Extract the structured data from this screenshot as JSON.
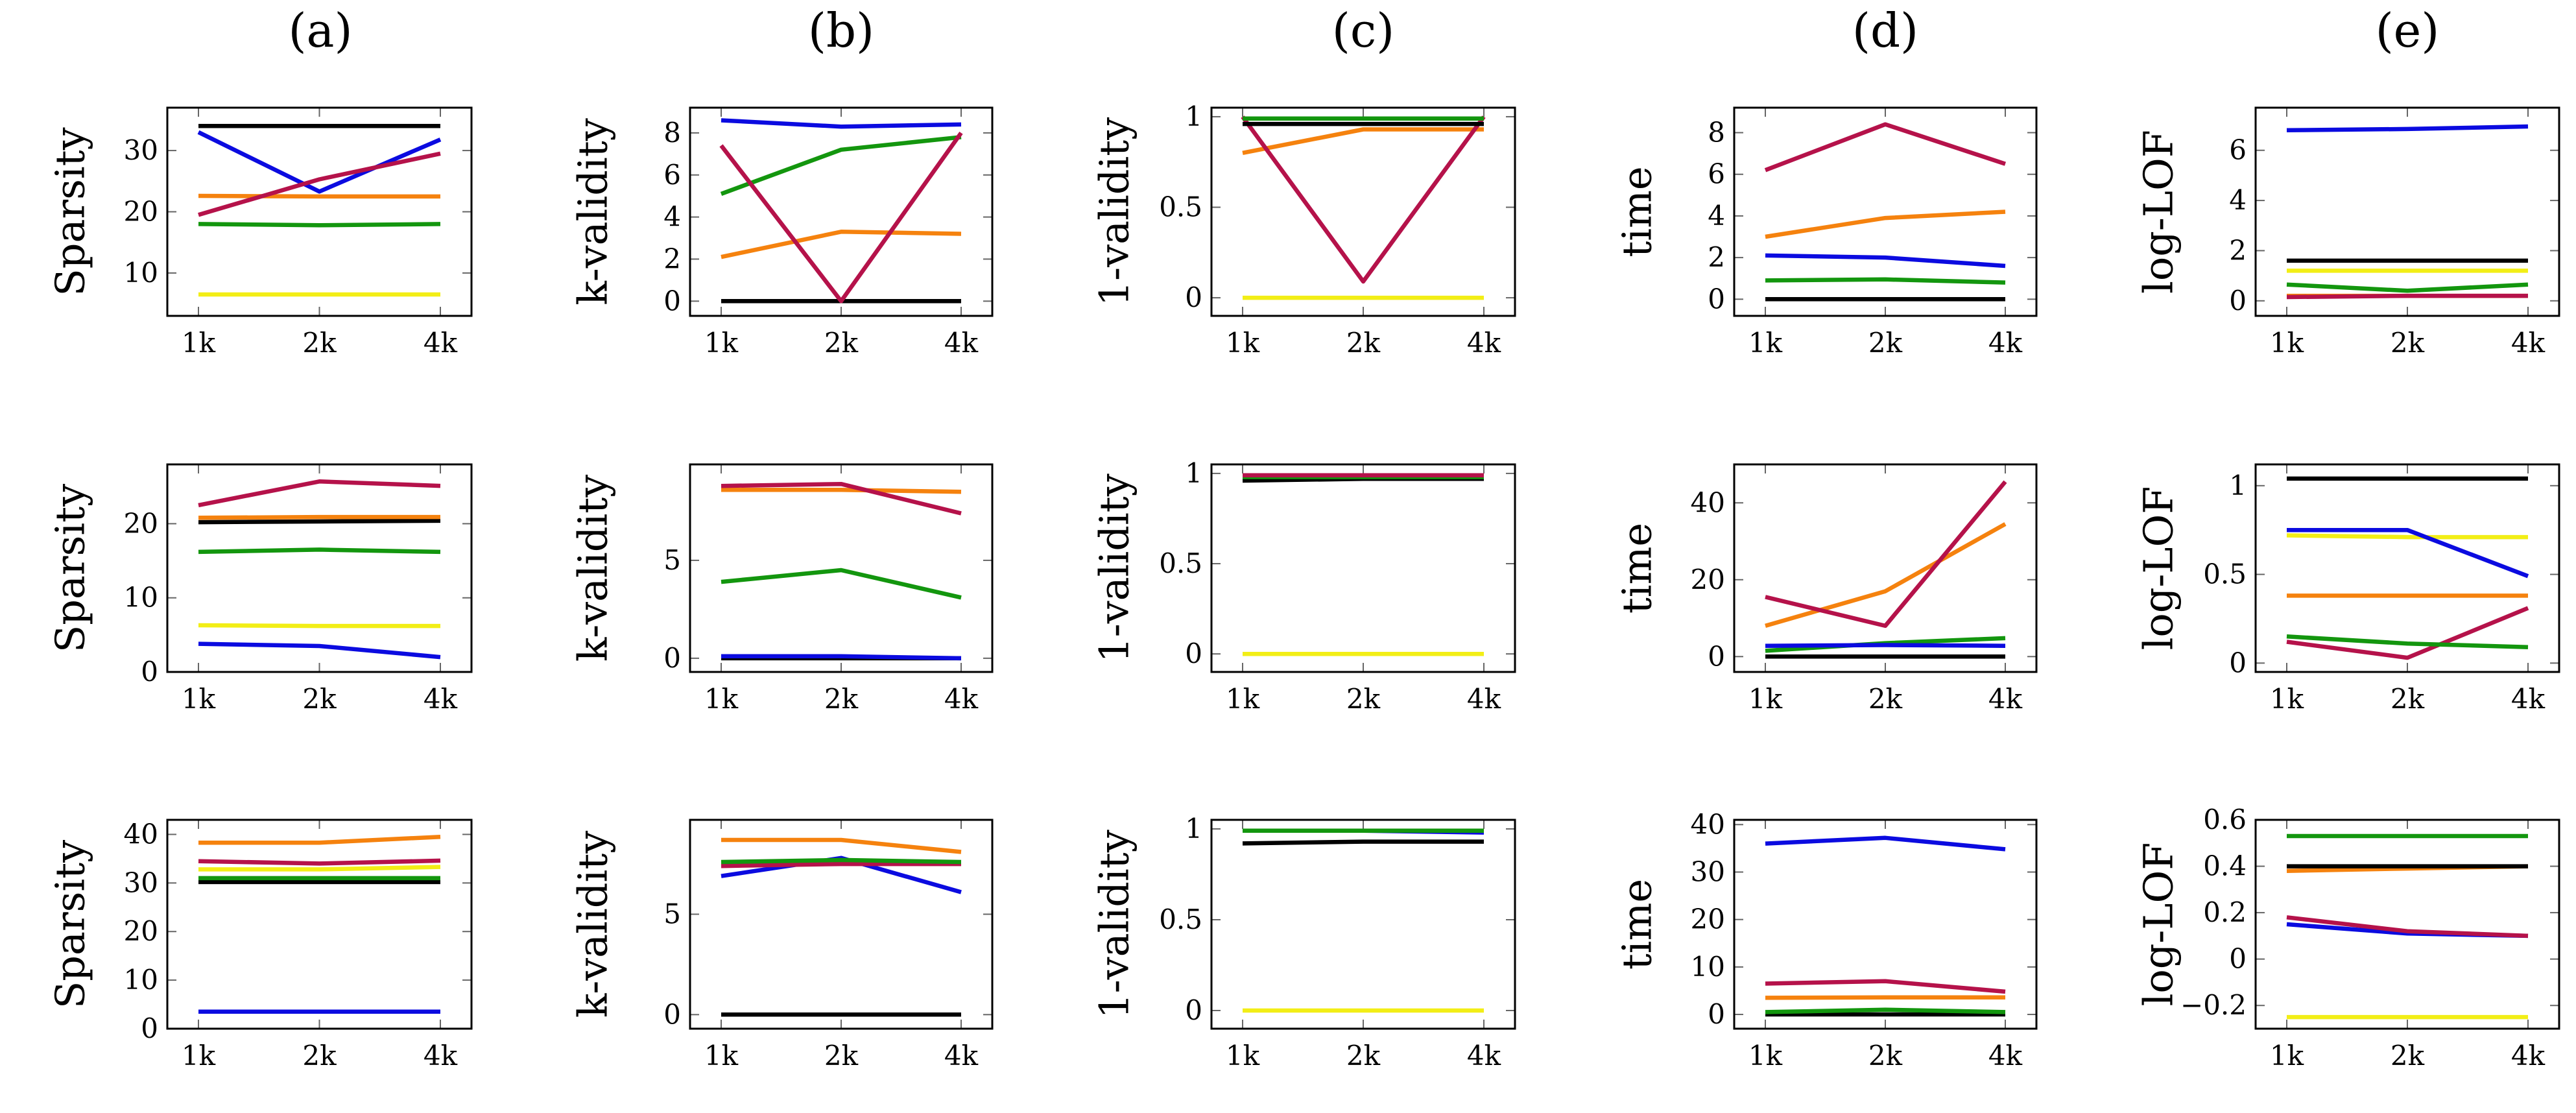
{
  "column_titles": [
    "(a)",
    "(b)",
    "(c)",
    "(d)",
    "(e)"
  ],
  "colors": {
    "blue": "#0b0be0",
    "red": "#b5124a",
    "orange": "#f5820e",
    "green": "#13960e",
    "yellow": "#f2ee16",
    "black": "#000000"
  },
  "chart_data": [
    {
      "id": "r0c0",
      "type": "line",
      "row": 0,
      "col": 0,
      "ylabel": "Sparsity",
      "categories": [
        "1k",
        "2k",
        "4k"
      ],
      "ylim": [
        3,
        37
      ],
      "yticks": [
        10,
        20,
        30
      ],
      "ytick_labels": [
        "10",
        "20",
        "30"
      ],
      "series": [
        {
          "name": "black",
          "color": "#000000",
          "values": [
            34,
            34,
            34
          ]
        },
        {
          "name": "orange",
          "color": "#f5820e",
          "values": [
            22.6,
            22.5,
            22.5
          ]
        },
        {
          "name": "green",
          "color": "#13960e",
          "values": [
            18,
            17.8,
            18
          ]
        },
        {
          "name": "yellow",
          "color": "#f2ee16",
          "values": [
            6.5,
            6.5,
            6.5
          ]
        },
        {
          "name": "blue",
          "color": "#0b0be0",
          "values": [
            33,
            23.3,
            31.8
          ]
        },
        {
          "name": "red",
          "color": "#b5124a",
          "values": [
            19.5,
            25.3,
            29.5
          ]
        }
      ]
    },
    {
      "id": "r0c1",
      "type": "line",
      "row": 0,
      "col": 1,
      "ylabel": "k-validity",
      "categories": [
        "1k",
        "2k",
        "4k"
      ],
      "ylim": [
        -0.7,
        9.2
      ],
      "yticks": [
        0,
        2,
        4,
        6,
        8
      ],
      "ytick_labels": [
        "0",
        "2",
        "4",
        "6",
        "8"
      ],
      "series": [
        {
          "name": "black",
          "color": "#000000",
          "values": [
            0,
            0,
            0
          ]
        },
        {
          "name": "orange",
          "color": "#f5820e",
          "values": [
            2.1,
            3.3,
            3.2
          ]
        },
        {
          "name": "green",
          "color": "#13960e",
          "values": [
            5.1,
            7.2,
            7.8
          ]
        },
        {
          "name": "blue",
          "color": "#0b0be0",
          "values": [
            8.6,
            8.3,
            8.4
          ]
        },
        {
          "name": "red",
          "color": "#b5124a",
          "values": [
            7.4,
            0,
            8
          ]
        }
      ]
    },
    {
      "id": "r0c2",
      "type": "line",
      "row": 0,
      "col": 2,
      "ylabel": "1-validity",
      "categories": [
        "1k",
        "2k",
        "4k"
      ],
      "ylim": [
        -0.1,
        1.05
      ],
      "yticks": [
        0,
        0.5,
        1
      ],
      "ytick_labels": [
        "0",
        "0.5",
        "1"
      ],
      "series": [
        {
          "name": "yellow",
          "color": "#f2ee16",
          "values": [
            0,
            0,
            0
          ]
        },
        {
          "name": "orange",
          "color": "#f5820e",
          "values": [
            0.8,
            0.93,
            0.93
          ]
        },
        {
          "name": "red",
          "color": "#b5124a",
          "values": [
            1,
            0.09,
            1
          ]
        },
        {
          "name": "black",
          "color": "#000000",
          "values": [
            0.96,
            0.96,
            0.96
          ]
        },
        {
          "name": "green",
          "color": "#13960e",
          "values": [
            0.99,
            0.99,
            0.99
          ]
        }
      ]
    },
    {
      "id": "r0c3",
      "type": "line",
      "row": 0,
      "col": 3,
      "ylabel": "time",
      "categories": [
        "1k",
        "2k",
        "4k"
      ],
      "ylim": [
        -0.8,
        9.2
      ],
      "yticks": [
        0,
        2,
        4,
        6,
        8
      ],
      "ytick_labels": [
        "0",
        "2",
        "4",
        "6",
        "8"
      ],
      "series": [
        {
          "name": "black",
          "color": "#000000",
          "values": [
            0,
            0,
            0
          ]
        },
        {
          "name": "green",
          "color": "#13960e",
          "values": [
            0.9,
            0.95,
            0.8
          ]
        },
        {
          "name": "blue",
          "color": "#0b0be0",
          "values": [
            2.1,
            2,
            1.6
          ]
        },
        {
          "name": "orange",
          "color": "#f5820e",
          "values": [
            3,
            3.9,
            4.2
          ]
        },
        {
          "name": "red",
          "color": "#b5124a",
          "values": [
            6.2,
            8.4,
            6.5
          ]
        }
      ]
    },
    {
      "id": "r0c4",
      "type": "line",
      "row": 0,
      "col": 4,
      "ylabel": "log-LOF",
      "categories": [
        "1k",
        "2k",
        "4k"
      ],
      "ylim": [
        -0.6,
        7.7
      ],
      "yticks": [
        0,
        2,
        4,
        6
      ],
      "ytick_labels": [
        "0",
        "2",
        "4",
        "6"
      ],
      "series": [
        {
          "name": "orange",
          "color": "#f5820e",
          "values": [
            0.2,
            0.2,
            0.2
          ]
        },
        {
          "name": "red",
          "color": "#b5124a",
          "values": [
            0.15,
            0.2,
            0.2
          ]
        },
        {
          "name": "green",
          "color": "#13960e",
          "values": [
            0.65,
            0.4,
            0.65
          ]
        },
        {
          "name": "yellow",
          "color": "#f2ee16",
          "values": [
            1.2,
            1.2,
            1.2
          ]
        },
        {
          "name": "black",
          "color": "#000000",
          "values": [
            1.6,
            1.6,
            1.6
          ]
        },
        {
          "name": "blue",
          "color": "#0b0be0",
          "values": [
            6.8,
            6.85,
            6.95
          ]
        }
      ]
    },
    {
      "id": "r1c0",
      "type": "line",
      "row": 1,
      "col": 0,
      "ylabel": "Sparsity",
      "categories": [
        "1k",
        "2k",
        "4k"
      ],
      "ylim": [
        0,
        28
      ],
      "yticks": [
        0,
        10,
        20
      ],
      "ytick_labels": [
        "0",
        "10",
        "20"
      ],
      "series": [
        {
          "name": "blue",
          "color": "#0b0be0",
          "values": [
            3.8,
            3.5,
            2
          ]
        },
        {
          "name": "yellow",
          "color": "#f2ee16",
          "values": [
            6.3,
            6.2,
            6.2
          ]
        },
        {
          "name": "green",
          "color": "#13960e",
          "values": [
            16.2,
            16.5,
            16.2
          ]
        },
        {
          "name": "black",
          "color": "#000000",
          "values": [
            20.2,
            20.3,
            20.4
          ]
        },
        {
          "name": "orange",
          "color": "#f5820e",
          "values": [
            20.8,
            20.9,
            20.9
          ]
        },
        {
          "name": "red",
          "color": "#b5124a",
          "values": [
            22.5,
            25.7,
            25.1
          ]
        }
      ]
    },
    {
      "id": "r1c1",
      "type": "line",
      "row": 1,
      "col": 1,
      "ylabel": "k-validity",
      "categories": [
        "1k",
        "2k",
        "4k"
      ],
      "ylim": [
        -0.7,
        9.9
      ],
      "yticks": [
        0,
        5
      ],
      "ytick_labels": [
        "0",
        "5"
      ],
      "series": [
        {
          "name": "black",
          "color": "#000000",
          "values": [
            0,
            0,
            0
          ]
        },
        {
          "name": "blue",
          "color": "#0b0be0",
          "values": [
            0.1,
            0.1,
            0
          ]
        },
        {
          "name": "green",
          "color": "#13960e",
          "values": [
            3.9,
            4.5,
            3.1
          ]
        },
        {
          "name": "orange",
          "color": "#f5820e",
          "values": [
            8.6,
            8.6,
            8.5
          ]
        },
        {
          "name": "red",
          "color": "#b5124a",
          "values": [
            8.8,
            8.9,
            7.4
          ]
        }
      ]
    },
    {
      "id": "r1c2",
      "type": "line",
      "row": 1,
      "col": 2,
      "ylabel": "1-validity",
      "categories": [
        "1k",
        "2k",
        "4k"
      ],
      "ylim": [
        -0.1,
        1.05
      ],
      "yticks": [
        0,
        0.5,
        1
      ],
      "ytick_labels": [
        "0",
        "0.5",
        "1"
      ],
      "series": [
        {
          "name": "yellow",
          "color": "#f2ee16",
          "values": [
            0,
            0,
            0
          ]
        },
        {
          "name": "black",
          "color": "#000000",
          "values": [
            0.96,
            0.97,
            0.97
          ]
        },
        {
          "name": "green",
          "color": "#13960e",
          "values": [
            0.98,
            0.98,
            0.98
          ]
        },
        {
          "name": "red",
          "color": "#b5124a",
          "values": [
            0.99,
            0.99,
            0.99
          ]
        }
      ]
    },
    {
      "id": "r1c3",
      "type": "line",
      "row": 1,
      "col": 3,
      "ylabel": "time",
      "categories": [
        "1k",
        "2k",
        "4k"
      ],
      "ylim": [
        -4,
        50
      ],
      "yticks": [
        0,
        20,
        40
      ],
      "ytick_labels": [
        "0",
        "20",
        "40"
      ],
      "series": [
        {
          "name": "black",
          "color": "#000000",
          "values": [
            0,
            0,
            0
          ]
        },
        {
          "name": "green",
          "color": "#13960e",
          "values": [
            1.5,
            3.5,
            4.8
          ]
        },
        {
          "name": "blue",
          "color": "#0b0be0",
          "values": [
            2.8,
            3,
            2.8
          ]
        },
        {
          "name": "orange",
          "color": "#f5820e",
          "values": [
            8,
            17,
            34.5
          ]
        },
        {
          "name": "red",
          "color": "#b5124a",
          "values": [
            15.5,
            8,
            45.5
          ]
        }
      ]
    },
    {
      "id": "r1c4",
      "type": "line",
      "row": 1,
      "col": 4,
      "ylabel": "log-LOF",
      "categories": [
        "1k",
        "2k",
        "4k"
      ],
      "ylim": [
        -0.05,
        1.12
      ],
      "yticks": [
        0,
        0.5,
        1
      ],
      "ytick_labels": [
        "0",
        "0.5",
        "1"
      ],
      "series": [
        {
          "name": "red",
          "color": "#b5124a",
          "values": [
            0.12,
            0.03,
            0.31
          ]
        },
        {
          "name": "green",
          "color": "#13960e",
          "values": [
            0.15,
            0.11,
            0.09
          ]
        },
        {
          "name": "orange",
          "color": "#f5820e",
          "values": [
            0.38,
            0.38,
            0.38
          ]
        },
        {
          "name": "yellow",
          "color": "#f2ee16",
          "values": [
            0.72,
            0.71,
            0.71
          ]
        },
        {
          "name": "blue",
          "color": "#0b0be0",
          "values": [
            0.75,
            0.75,
            0.49
          ]
        },
        {
          "name": "black",
          "color": "#000000",
          "values": [
            1.04,
            1.04,
            1.04
          ]
        }
      ]
    },
    {
      "id": "r2c0",
      "type": "line",
      "row": 2,
      "col": 0,
      "ylabel": "Sparsity",
      "categories": [
        "1k",
        "2k",
        "4k"
      ],
      "ylim": [
        0,
        43
      ],
      "yticks": [
        0,
        10,
        20,
        30,
        40
      ],
      "ytick_labels": [
        "0",
        "10",
        "20",
        "30",
        "40"
      ],
      "series": [
        {
          "name": "blue",
          "color": "#0b0be0",
          "values": [
            3.5,
            3.5,
            3.5
          ]
        },
        {
          "name": "black",
          "color": "#000000",
          "values": [
            30.2,
            30.2,
            30.2
          ]
        },
        {
          "name": "green",
          "color": "#13960e",
          "values": [
            31,
            31,
            31
          ]
        },
        {
          "name": "yellow",
          "color": "#f2ee16",
          "values": [
            32.8,
            32.8,
            33.3
          ]
        },
        {
          "name": "red",
          "color": "#b5124a",
          "values": [
            34.5,
            34,
            34.6
          ]
        },
        {
          "name": "orange",
          "color": "#f5820e",
          "values": [
            38.3,
            38.3,
            39.5
          ]
        }
      ]
    },
    {
      "id": "r2c1",
      "type": "line",
      "row": 2,
      "col": 1,
      "ylabel": "k-validity",
      "categories": [
        "1k",
        "2k",
        "4k"
      ],
      "ylim": [
        -0.7,
        9.7
      ],
      "yticks": [
        0,
        5
      ],
      "ytick_labels": [
        "0",
        "5"
      ],
      "series": [
        {
          "name": "black",
          "color": "#000000",
          "values": [
            0,
            0,
            0
          ]
        },
        {
          "name": "blue",
          "color": "#0b0be0",
          "values": [
            6.9,
            7.8,
            6.1
          ]
        },
        {
          "name": "red",
          "color": "#b5124a",
          "values": [
            7.4,
            7.5,
            7.5
          ]
        },
        {
          "name": "green",
          "color": "#13960e",
          "values": [
            7.6,
            7.7,
            7.6
          ]
        },
        {
          "name": "orange",
          "color": "#f5820e",
          "values": [
            8.7,
            8.7,
            8.1
          ]
        }
      ]
    },
    {
      "id": "r2c2",
      "type": "line",
      "row": 2,
      "col": 2,
      "ylabel": "1-validity",
      "categories": [
        "1k",
        "2k",
        "4k"
      ],
      "ylim": [
        -0.1,
        1.05
      ],
      "yticks": [
        0,
        0.5,
        1
      ],
      "ytick_labels": [
        "0",
        "0.5",
        "1"
      ],
      "series": [
        {
          "name": "yellow",
          "color": "#f2ee16",
          "values": [
            0,
            0,
            0
          ]
        },
        {
          "name": "black",
          "color": "#000000",
          "values": [
            0.92,
            0.93,
            0.93
          ]
        },
        {
          "name": "blue",
          "color": "#0b0be0",
          "values": [
            0.99,
            0.99,
            0.98
          ]
        },
        {
          "name": "green",
          "color": "#13960e",
          "values": [
            0.99,
            0.99,
            0.99
          ]
        }
      ]
    },
    {
      "id": "r2c3",
      "type": "line",
      "row": 2,
      "col": 3,
      "ylabel": "time",
      "categories": [
        "1k",
        "2k",
        "4k"
      ],
      "ylim": [
        -3,
        41
      ],
      "yticks": [
        0,
        10,
        20,
        30,
        40
      ],
      "ytick_labels": [
        "0",
        "10",
        "20",
        "30",
        "40"
      ],
      "series": [
        {
          "name": "black",
          "color": "#000000",
          "values": [
            0,
            0,
            0
          ]
        },
        {
          "name": "green",
          "color": "#13960e",
          "values": [
            0.5,
            1,
            0.5
          ]
        },
        {
          "name": "orange",
          "color": "#f5820e",
          "values": [
            3.5,
            3.6,
            3.6
          ]
        },
        {
          "name": "red",
          "color": "#b5124a",
          "values": [
            6.5,
            7,
            4.8
          ]
        },
        {
          "name": "blue",
          "color": "#0b0be0",
          "values": [
            36,
            37.2,
            34.8
          ]
        }
      ]
    },
    {
      "id": "r2c4",
      "type": "line",
      "row": 2,
      "col": 4,
      "ylabel": "log-LOF",
      "categories": [
        "1k",
        "2k",
        "4k"
      ],
      "ylim": [
        -0.3,
        0.6
      ],
      "yticks": [
        -0.2,
        0,
        0.2,
        0.4,
        0.6
      ],
      "ytick_labels": [
        "−0.2",
        "0",
        "0.2",
        "0.4",
        "0.6"
      ],
      "series": [
        {
          "name": "yellow",
          "color": "#f2ee16",
          "values": [
            -0.25,
            -0.25,
            -0.25
          ]
        },
        {
          "name": "blue",
          "color": "#0b0be0",
          "values": [
            0.15,
            0.11,
            0.1
          ]
        },
        {
          "name": "red",
          "color": "#b5124a",
          "values": [
            0.18,
            0.12,
            0.1
          ]
        },
        {
          "name": "orange",
          "color": "#f5820e",
          "values": [
            0.38,
            0.39,
            0.4
          ]
        },
        {
          "name": "black",
          "color": "#000000",
          "values": [
            0.4,
            0.4,
            0.4
          ]
        },
        {
          "name": "green",
          "color": "#13960e",
          "values": [
            0.53,
            0.53,
            0.53
          ]
        }
      ]
    }
  ]
}
